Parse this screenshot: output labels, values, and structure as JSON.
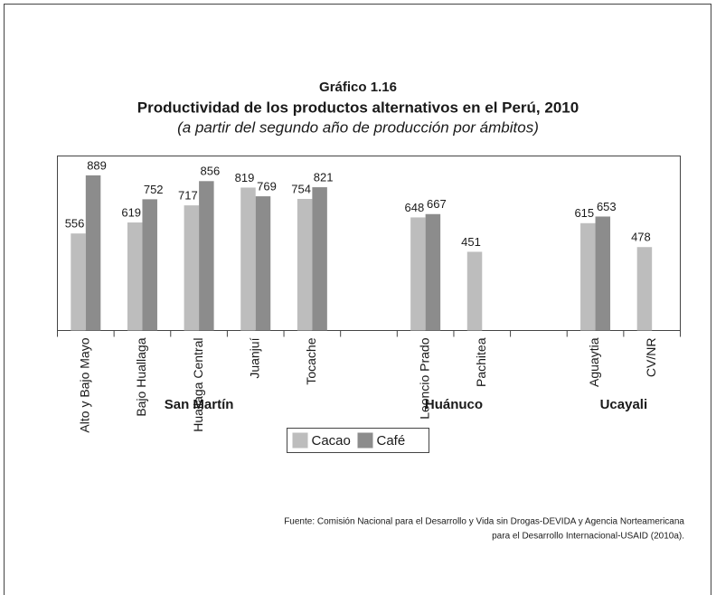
{
  "chart_data": {
    "type": "bar",
    "title": "Gráfico 1.16",
    "subtitle": "Productividad de los productos alternativos en el Perú, 2010",
    "note": "(a partir del segundo año de producción por ámbitos)",
    "categories": [
      "Alto y Bajo Mayo",
      "Bajo Huallaga",
      "Huallaga Central",
      "Juanjuí",
      "Tocache",
      null,
      "Leoncio Prado",
      "Pachitea",
      null,
      "Aguaytia",
      "CV/NR"
    ],
    "groups": [
      "San Martín",
      "Huánuco",
      "Ucayali"
    ],
    "series": [
      {
        "name": "Cacao",
        "color": "#bdbdbd",
        "values": [
          556,
          619,
          717,
          819,
          754,
          null,
          648,
          451,
          null,
          615,
          478
        ]
      },
      {
        "name": "Café",
        "color": "#8c8c8c",
        "values": [
          889,
          752,
          856,
          769,
          821,
          null,
          667,
          null,
          null,
          653,
          null
        ]
      }
    ],
    "ylim": [
      0,
      1000
    ],
    "legend": "bottom",
    "source": [
      "Fuente: Comisión Nacional para el Desarrollo y Vida sin Drogas-DEVIDA y Agencia Norteamericana",
      "para el Desarrollo Internacional-USAID (2010a)."
    ]
  }
}
